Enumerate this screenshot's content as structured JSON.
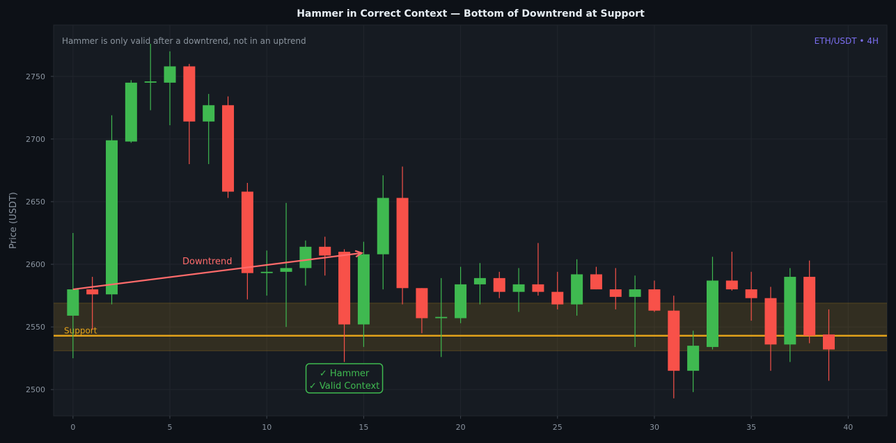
{
  "chart_data": {
    "type": "candlestick",
    "title": "Hammer in Correct Context — Bottom of Downtrend at Support",
    "subtitle": "Hammer is only valid after a downtrend, not in an uptrend",
    "instrument": "ETH/USDT • 4H",
    "xlabel": "",
    "ylabel": "Price (USDT)",
    "xlim": [
      -1,
      42
    ],
    "ylim": [
      2479,
      2791
    ],
    "x_ticks": [
      0,
      5,
      10,
      15,
      20,
      25,
      30,
      35,
      40
    ],
    "y_ticks": [
      2500,
      2550,
      2600,
      2650,
      2700,
      2750
    ],
    "grid": true,
    "colors": {
      "up": "#3fb950",
      "down": "#f85149",
      "support": "#e3a21a",
      "trend": "#ff6b6b",
      "pair": "#7c6ff2"
    },
    "candles": [
      {
        "x": 0,
        "open": 2559,
        "high": 2625,
        "low": 2525,
        "close": 2580
      },
      {
        "x": 1,
        "open": 2580,
        "high": 2590,
        "low": 2548,
        "close": 2576
      },
      {
        "x": 2,
        "open": 2576,
        "high": 2719,
        "low": 2568,
        "close": 2699
      },
      {
        "x": 3,
        "open": 2698,
        "high": 2747,
        "low": 2697,
        "close": 2745
      },
      {
        "x": 4,
        "open": 2745,
        "high": 2776,
        "low": 2723,
        "close": 2746
      },
      {
        "x": 5,
        "open": 2745,
        "high": 2770,
        "low": 2711,
        "close": 2758
      },
      {
        "x": 6,
        "open": 2758,
        "high": 2760,
        "low": 2680,
        "close": 2714
      },
      {
        "x": 7,
        "open": 2714,
        "high": 2736,
        "low": 2680,
        "close": 2727
      },
      {
        "x": 8,
        "open": 2727,
        "high": 2734,
        "low": 2653,
        "close": 2658
      },
      {
        "x": 9,
        "open": 2658,
        "high": 2665,
        "low": 2572,
        "close": 2593
      },
      {
        "x": 10,
        "open": 2593,
        "high": 2611,
        "low": 2575,
        "close": 2594
      },
      {
        "x": 11,
        "open": 2594,
        "high": 2649,
        "low": 2550,
        "close": 2597
      },
      {
        "x": 12,
        "open": 2597,
        "high": 2619,
        "low": 2583,
        "close": 2614
      },
      {
        "x": 13,
        "open": 2614,
        "high": 2622,
        "low": 2591,
        "close": 2607
      },
      {
        "x": 14,
        "open": 2610,
        "high": 2612,
        "low": 2522,
        "close": 2552
      },
      {
        "x": 15,
        "open": 2552,
        "high": 2618,
        "low": 2534,
        "close": 2608
      },
      {
        "x": 16,
        "open": 2608,
        "high": 2671,
        "low": 2580,
        "close": 2653
      },
      {
        "x": 17,
        "open": 2653,
        "high": 2678,
        "low": 2568,
        "close": 2581
      },
      {
        "x": 18,
        "open": 2581,
        "high": 2581,
        "low": 2545,
        "close": 2557
      },
      {
        "x": 19,
        "open": 2557,
        "high": 2589,
        "low": 2526,
        "close": 2558
      },
      {
        "x": 20,
        "open": 2557,
        "high": 2598,
        "low": 2553,
        "close": 2584
      },
      {
        "x": 21,
        "open": 2584,
        "high": 2601,
        "low": 2568,
        "close": 2589
      },
      {
        "x": 22,
        "open": 2589,
        "high": 2594,
        "low": 2573,
        "close": 2578
      },
      {
        "x": 23,
        "open": 2578,
        "high": 2597,
        "low": 2562,
        "close": 2584
      },
      {
        "x": 24,
        "open": 2584,
        "high": 2617,
        "low": 2575,
        "close": 2578
      },
      {
        "x": 25,
        "open": 2578,
        "high": 2594,
        "low": 2564,
        "close": 2568
      },
      {
        "x": 26,
        "open": 2568,
        "high": 2604,
        "low": 2559,
        "close": 2592
      },
      {
        "x": 27,
        "open": 2592,
        "high": 2598,
        "low": 2580,
        "close": 2580
      },
      {
        "x": 28,
        "open": 2580,
        "high": 2597,
        "low": 2564,
        "close": 2574
      },
      {
        "x": 29,
        "open": 2574,
        "high": 2591,
        "low": 2534,
        "close": 2580
      },
      {
        "x": 30,
        "open": 2580,
        "high": 2587,
        "low": 2562,
        "close": 2563
      },
      {
        "x": 31,
        "open": 2563,
        "high": 2575,
        "low": 2493,
        "close": 2515
      },
      {
        "x": 32,
        "open": 2515,
        "high": 2547,
        "low": 2498,
        "close": 2535
      },
      {
        "x": 33,
        "open": 2534,
        "high": 2606,
        "low": 2532,
        "close": 2587
      },
      {
        "x": 34,
        "open": 2587,
        "high": 2610,
        "low": 2579,
        "close": 2580
      },
      {
        "x": 35,
        "open": 2580,
        "high": 2594,
        "low": 2555,
        "close": 2573
      },
      {
        "x": 36,
        "open": 2573,
        "high": 2582,
        "low": 2515,
        "close": 2536
      },
      {
        "x": 37,
        "open": 2536,
        "high": 2597,
        "low": 2522,
        "close": 2590
      },
      {
        "x": 38,
        "open": 2590,
        "high": 2603,
        "low": 2537,
        "close": 2543
      },
      {
        "x": 39,
        "open": 2544,
        "high": 2564,
        "low": 2507,
        "close": 2532
      }
    ],
    "support": {
      "level": 2543,
      "zone": [
        2531,
        2569
      ],
      "label": "Support"
    },
    "trend_arrow": {
      "label": "Downtrend",
      "from": {
        "x": 0,
        "y": 2580
      },
      "to": {
        "x": 14.9,
        "y": 2609
      }
    },
    "hammer_annotation": {
      "line1": "✓ Hammer",
      "line2": "✓ Valid Context",
      "x": 14,
      "y": 2504
    }
  }
}
